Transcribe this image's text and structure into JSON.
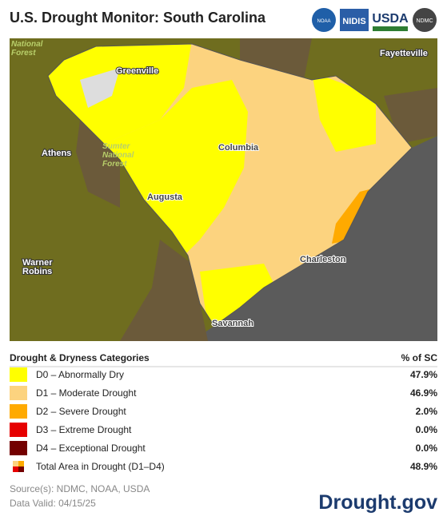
{
  "header": {
    "title": "U.S. Drought Monitor: South Carolina",
    "logos": [
      "NOAA",
      "NIDIS",
      "USDA",
      "NDMC"
    ]
  },
  "map": {
    "labels": [
      {
        "lines": [
          "National",
          "Forest"
        ]
      },
      {
        "lines": [
          "Fayetteville"
        ]
      },
      {
        "lines": [
          "Greenville"
        ]
      },
      {
        "lines": [
          "Athens"
        ]
      },
      {
        "lines": [
          "Sumter",
          "National",
          "Forest"
        ]
      },
      {
        "lines": [
          "Columbia"
        ]
      },
      {
        "lines": [
          "Augusta"
        ]
      },
      {
        "lines": [
          "Warner",
          "Robins"
        ]
      },
      {
        "lines": [
          "Charleston"
        ]
      },
      {
        "lines": [
          "Savannah"
        ]
      }
    ]
  },
  "legend": {
    "heading": "Drought & Dryness Categories",
    "column": "% of SC",
    "rows": [
      {
        "label": "D0 – Abnormally Dry",
        "value": "47.9%",
        "color": "#ffff00"
      },
      {
        "label": "D1 – Moderate Drought",
        "value": "46.9%",
        "color": "#fcd37f"
      },
      {
        "label": "D2 – Severe Drought",
        "value": "2.0%",
        "color": "#ffaa00"
      },
      {
        "label": "D3 – Extreme Drought",
        "value": "0.0%",
        "color": "#e60000"
      },
      {
        "label": "D4 – Exceptional Drought",
        "value": "0.0%",
        "color": "#730000"
      },
      {
        "label": "Total Area in Drought (D1–D4)",
        "value": "48.9%"
      }
    ]
  },
  "footer": {
    "sources": "Source(s): NDMC, NOAA, USDA",
    "date": "Data Valid: 04/15/25",
    "brand": "Drought.gov"
  }
}
